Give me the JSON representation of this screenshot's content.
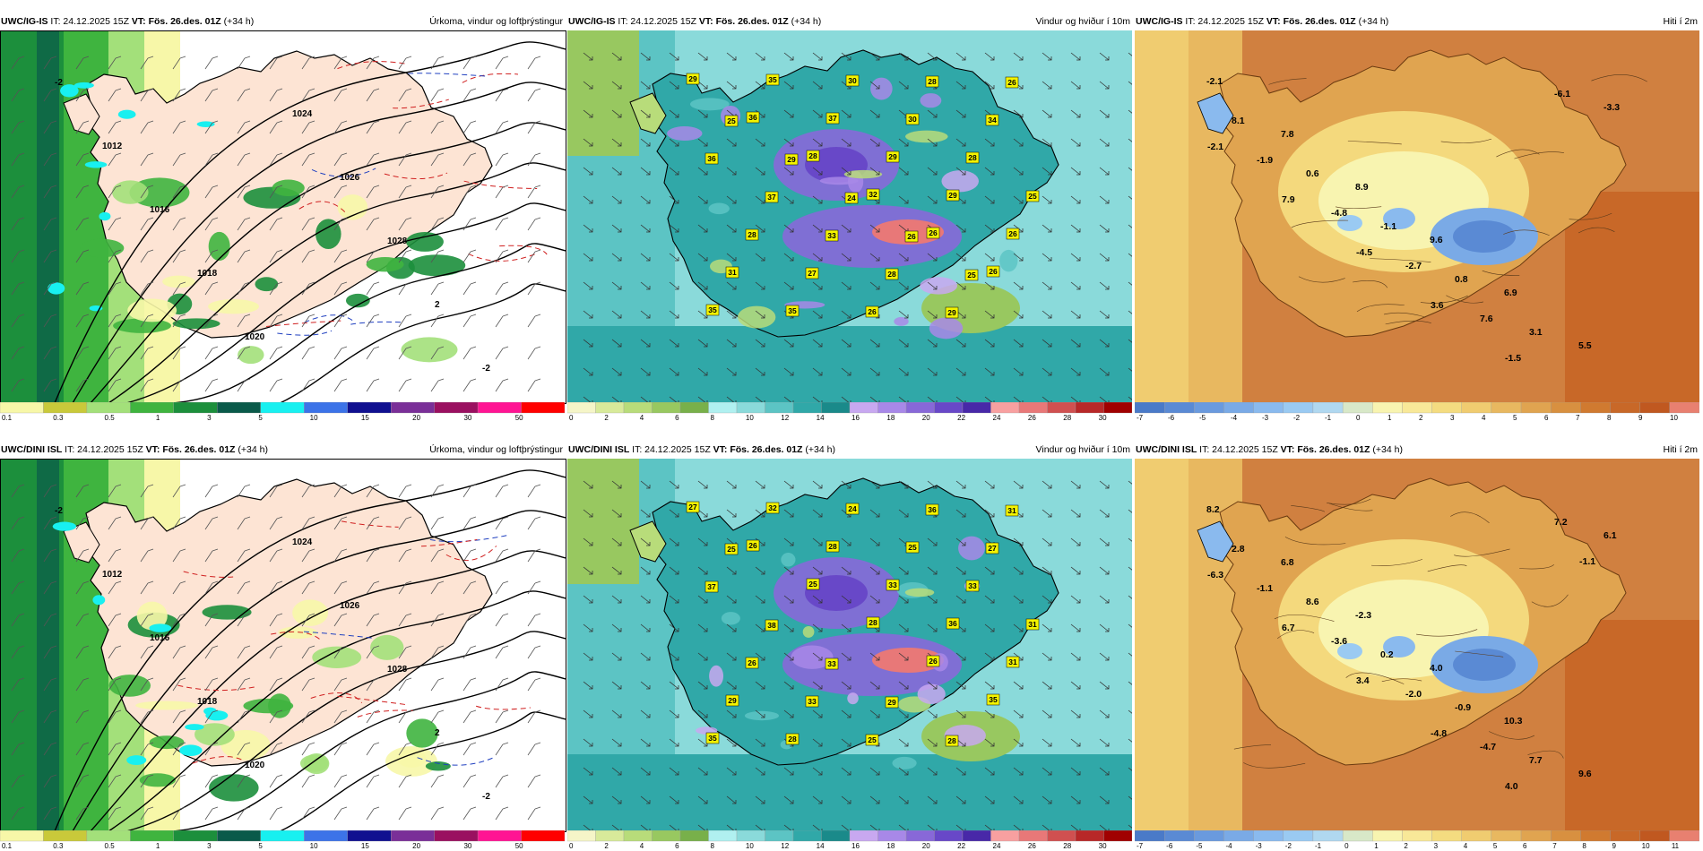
{
  "panels": [
    {
      "id": "p1",
      "model": "UWC/IG-IS",
      "it": "IT: 24.12.2025 15Z",
      "vt": "VT: Fös. 26.des. 01Z",
      "lead": "(+34 h)",
      "title": "Úrkoma, vindur og loftþrýstingur",
      "type": "precip",
      "legend": {
        "colors": [
          "#f7f7a8",
          "#c9c93a",
          "#a3e07a",
          "#3fb43f",
          "#1c8f3c",
          "#0a5a4a",
          "#18f0f0",
          "#3c73e8",
          "#101090",
          "#7a2f98",
          "#9a1060",
          "#ff1493",
          "#ff0000"
        ],
        "ticks": [
          "0.1",
          "0.3",
          "0.5",
          "1",
          "3",
          "5",
          "10",
          "15",
          "20",
          "30",
          "50"
        ]
      },
      "labels": [
        "-2",
        "1012",
        "1016",
        "1018",
        "1020",
        "1024",
        "1026",
        "1028",
        "2",
        "-2"
      ]
    },
    {
      "id": "p2",
      "model": "UWC/IG-IS",
      "it": "IT: 24.12.2025 15Z",
      "vt": "VT: Fös. 26.des. 01Z",
      "lead": "(+34 h)",
      "title": "Vindur og hviður í 10m",
      "type": "wind",
      "legend": {
        "colors": [
          "#f5f5c8",
          "#d8ea9a",
          "#b8dc7a",
          "#98c860",
          "#78b04a",
          "#b0f0f0",
          "#8adada",
          "#5cc4c4",
          "#30a8a8",
          "#1a8a8a",
          "#c8a8f0",
          "#a888e8",
          "#8868d8",
          "#6848c8",
          "#4828a8",
          "#f8a0a0",
          "#e87878",
          "#d05050",
          "#b82828",
          "#a00000"
        ],
        "ticks": [
          "0",
          "2",
          "4",
          "6",
          "8",
          "10",
          "12",
          "14",
          "16",
          "18",
          "20",
          "22",
          "24",
          "26",
          "28",
          "30"
        ]
      },
      "gusts": [
        "29",
        "36",
        "28",
        "32",
        "26",
        "26",
        "35",
        "35",
        "37",
        "29",
        "29",
        "26",
        "31",
        "35",
        "30",
        "30",
        "28",
        "25",
        "28",
        "27",
        "26",
        "28",
        "34",
        "36",
        "37",
        "33",
        "28",
        "29",
        "26",
        "25",
        "29",
        "24",
        "26",
        "25"
      ]
    },
    {
      "id": "p3",
      "model": "UWC/IG-IS",
      "it": "IT: 24.12.2025 15Z",
      "vt": "VT: Fös. 26.des. 01Z",
      "lead": "(+34 h)",
      "title": "Hiti í 2m",
      "type": "temp",
      "legend": {
        "colors": [
          "#4a7ac8",
          "#5a8ad4",
          "#6a9ade",
          "#7aaae6",
          "#8abaee",
          "#9acaf2",
          "#b0d8f0",
          "#d8e8c8",
          "#f8f4b0",
          "#f8e898",
          "#f4dc80",
          "#f0cc70",
          "#e8b860",
          "#e0a450",
          "#d89040",
          "#d07a30",
          "#c86828",
          "#c05820",
          "#e88070"
        ],
        "ticks": [
          "-7",
          "-6",
          "-5",
          "-4",
          "-3",
          "-2",
          "-1",
          "0",
          "1",
          "2",
          "3",
          "4",
          "5",
          "6",
          "7",
          "8",
          "9",
          "10"
        ]
      },
      "temps": [
        "-2.1",
        "7.8",
        "8.9",
        "9.6",
        "6.9",
        "5.5",
        "8.1",
        "0.6",
        "-1.1",
        "0.8",
        "3.1",
        "-3.3",
        "-1.9",
        "-4.8",
        "-2.7",
        "7.6",
        "-6.1",
        "-2.1",
        "7.9",
        "-4.5",
        "3.6",
        "-1.5"
      ]
    },
    {
      "id": "p4",
      "model": "UWC/DINI ISL",
      "it": "IT: 24.12.2025 15Z",
      "vt": "VT: Fös. 26.des. 01Z",
      "lead": "(+34 h)",
      "title": "Úrkoma, vindur og loftþrýstingur",
      "type": "precip",
      "legend": {
        "colors": [
          "#f7f7a8",
          "#c9c93a",
          "#a3e07a",
          "#3fb43f",
          "#1c8f3c",
          "#0a5a4a",
          "#18f0f0",
          "#3c73e8",
          "#101090",
          "#7a2f98",
          "#9a1060",
          "#ff1493",
          "#ff0000"
        ],
        "ticks": [
          "0.1",
          "0.3",
          "0.5",
          "1",
          "3",
          "5",
          "10",
          "15",
          "20",
          "30",
          "50"
        ]
      },
      "labels": [
        "-2",
        "1012",
        "1016",
        "1018",
        "1020",
        "1024",
        "1026",
        "1028",
        "2",
        "-2"
      ]
    },
    {
      "id": "p5",
      "model": "UWC/DINI ISL",
      "it": "IT: 24.12.2025 15Z",
      "vt": "VT: Fös. 26.des. 01Z",
      "lead": "(+34 h)",
      "title": "Vindur og hviður í 10m",
      "type": "wind",
      "legend": {
        "colors": [
          "#f5f5c8",
          "#d8ea9a",
          "#b8dc7a",
          "#98c860",
          "#78b04a",
          "#b0f0f0",
          "#8adada",
          "#5cc4c4",
          "#30a8a8",
          "#1a8a8a",
          "#c8a8f0",
          "#a888e8",
          "#8868d8",
          "#6848c8",
          "#4828a8",
          "#f8a0a0",
          "#e87878",
          "#d05050",
          "#b82828",
          "#a00000"
        ],
        "ticks": [
          "0",
          "2",
          "4",
          "6",
          "8",
          "10",
          "12",
          "14",
          "16",
          "18",
          "20",
          "22",
          "24",
          "26",
          "28",
          "30"
        ]
      },
      "gusts": [
        "27",
        "26",
        "25",
        "28",
        "26",
        "35",
        "35",
        "32",
        "28",
        "33",
        "36",
        "31",
        "29",
        "28",
        "24",
        "25",
        "33",
        "31",
        "26",
        "33",
        "25",
        "36",
        "27",
        "37",
        "38",
        "33",
        "29",
        "28",
        "31",
        "25"
      ]
    },
    {
      "id": "p6",
      "model": "UWC/DINI ISL",
      "it": "IT: 24.12.2025 15Z",
      "vt": "VT: Fös. 26.des. 01Z",
      "lead": "(+34 h)",
      "title": "Hiti í 2m",
      "type": "temp",
      "legend": {
        "colors": [
          "#4a7ac8",
          "#5a8ad4",
          "#6a9ade",
          "#7aaae6",
          "#8abaee",
          "#9acaf2",
          "#b0d8f0",
          "#d8e8c8",
          "#f8f4b0",
          "#f8e898",
          "#f4dc80",
          "#f0cc70",
          "#e8b860",
          "#e0a450",
          "#d89040",
          "#d07a30",
          "#c86828",
          "#c05820",
          "#e88070"
        ],
        "ticks": [
          "-7",
          "-6",
          "-5",
          "-4",
          "-3",
          "-2",
          "-1",
          "0",
          "1",
          "2",
          "3",
          "4",
          "5",
          "6",
          "7",
          "8",
          "9",
          "10",
          "11"
        ]
      },
      "temps": [
        "8.2",
        "6.8",
        "-2.3",
        "4.0",
        "10.3",
        "9.6",
        "2.8",
        "8.6",
        "0.2",
        "-0.9",
        "7.7",
        "6.1",
        "-1.1",
        "-3.6",
        "-2.0",
        "-4.7",
        "7.2",
        "-6.3",
        "6.7",
        "3.4",
        "-4.8",
        "4.0",
        "-1.1"
      ]
    }
  ]
}
